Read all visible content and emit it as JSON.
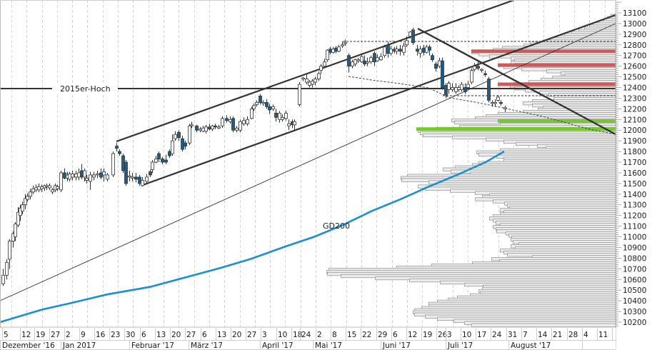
{
  "chart_data": {
    "type": "candlestick",
    "title": "",
    "xlabel": "",
    "ylabel": "",
    "ylim": [
      10150,
      13200
    ],
    "grid": {
      "vertical_dashed": true,
      "horizontal": false
    },
    "y_ticks": [
      13100,
      13000,
      12900,
      12800,
      12700,
      12600,
      12500,
      12400,
      12300,
      12200,
      12100,
      12000,
      11900,
      11800,
      11700,
      11600,
      11500,
      11400,
      11300,
      11200,
      11100,
      11000,
      10900,
      10800,
      10700,
      10600,
      10500,
      10400,
      10300,
      10200
    ],
    "x_day_ticks": [
      "5",
      "12",
      "19",
      "27",
      "2",
      "9",
      "16",
      "23",
      "30",
      "6",
      "13",
      "20",
      "27",
      "6",
      "13",
      "20",
      "27",
      "3",
      "10",
      "18",
      "24",
      "2",
      "8",
      "15",
      "22",
      "29",
      "6",
      "12",
      "19",
      "26",
      "3",
      "10",
      "17",
      "24",
      "31",
      "7",
      "14",
      "21",
      "28",
      "4",
      "11"
    ],
    "x_month_labels": [
      {
        "label": "Dezember '16",
        "start_index": 0
      },
      {
        "label": "Jan 2017",
        "start_index": 4
      },
      {
        "label": "Februar '17",
        "start_index": 9
      },
      {
        "label": "März '17",
        "start_index": 13
      },
      {
        "label": "April '17",
        "start_index": 17
      },
      {
        "label": "Mai '17",
        "start_index": 21
      },
      {
        "label": "Juni '17",
        "start_index": 26
      },
      {
        "label": "Juli '17",
        "start_index": 30
      },
      {
        "label": "August '17",
        "start_index": 34
      }
    ],
    "annotations": [
      {
        "text": "2015er-Hoch",
        "type": "horizontal_line",
        "y": 12390
      },
      {
        "text": "GD200",
        "type": "moving_average_label"
      }
    ],
    "series": [
      {
        "name": "Price (daily candles)",
        "type": "candlestick",
        "approx_path": [
          {
            "date": "Dez 5",
            "close": 10650
          },
          {
            "date": "Dez 12",
            "close": 11200
          },
          {
            "date": "Dez 19",
            "close": 11450
          },
          {
            "date": "Dez 27",
            "close": 11480
          },
          {
            "date": "Jan 9",
            "close": 11590
          },
          {
            "date": "Jan 23",
            "close": 11600
          },
          {
            "date": "Jan 26",
            "close": 11850
          },
          {
            "date": "Feb 6",
            "close": 11520
          },
          {
            "date": "Feb 20",
            "close": 11950
          },
          {
            "date": "Mär 1",
            "close": 12050
          },
          {
            "date": "Mär 16",
            "close": 12100
          },
          {
            "date": "Apr 3",
            "close": 12300
          },
          {
            "date": "Apr 18",
            "close": 12000
          },
          {
            "date": "Apr 24",
            "close": 12450
          },
          {
            "date": "Mai 8",
            "close": 12720
          },
          {
            "date": "Mai 15",
            "close": 12800
          },
          {
            "date": "Mai 22",
            "close": 12640
          },
          {
            "date": "Jun 6",
            "close": 12780
          },
          {
            "date": "Jun 19",
            "close": 12880
          },
          {
            "date": "Jun 26",
            "close": 12400
          },
          {
            "date": "Jul 3",
            "close": 12320
          },
          {
            "date": "Jul 13",
            "close": 12630
          },
          {
            "date": "Jul 24",
            "close": 12230
          },
          {
            "date": "Jul 28",
            "close": 12160
          }
        ]
      },
      {
        "name": "GD200",
        "type": "line",
        "color": "#1a8fd6",
        "approx_path": [
          {
            "date": "Dez 5",
            "value": 10200
          },
          {
            "date": "Jan 2",
            "value": 10350
          },
          {
            "date": "Feb 6",
            "value": 10500
          },
          {
            "date": "Mär 6",
            "value": 10680
          },
          {
            "date": "Apr 3",
            "value": 10900
          },
          {
            "date": "Mai 2",
            "value": 11150
          },
          {
            "date": "Jun 6",
            "value": 11450
          },
          {
            "date": "Jul 3",
            "value": 11650
          },
          {
            "date": "Jul 28",
            "value": 11830
          }
        ]
      },
      {
        "name": "Volume profile",
        "type": "horizontal_bar",
        "color": "#e6e6e6"
      },
      {
        "name": "Resistance zones",
        "type": "horizontal_band",
        "color": "#d05a5a",
        "levels": [
          12740,
          12610,
          12430
        ]
      },
      {
        "name": "Support zones",
        "type": "horizontal_band",
        "color": "#77c72e",
        "levels": [
          12080,
          12010
        ]
      }
    ],
    "trendlines": [
      {
        "name": "upper-channel",
        "from": {
          "date": "Jan 23",
          "value": 11890
        },
        "to": {
          "date": "Aug",
          "value": 13250
        }
      },
      {
        "name": "lower-channel",
        "from": {
          "date": "Feb 6",
          "value": 11480
        },
        "to": {
          "date": "Aug 11",
          "value": 13050
        }
      },
      {
        "name": "long-term-support",
        "from": {
          "date": "Dez 5",
          "value": 10400
        },
        "to": {
          "date": "Aug 11",
          "value": 13000
        }
      },
      {
        "name": "downtrend",
        "from": {
          "date": "Jun 19",
          "value": 12960
        },
        "to": {
          "date": "Aug 11",
          "value": 11950
        }
      },
      {
        "name": "dashed-high",
        "value": 12840
      },
      {
        "name": "dashed-low",
        "value": 12310
      }
    ]
  },
  "colors": {
    "bear_candle": "#1a5e8c",
    "bull_candle": "#ffffff",
    "gd200": "#1a8fd6",
    "resistance": "#d05a5a",
    "support": "#77c72e",
    "trendline": "#333333",
    "grid": "#cccccc"
  }
}
